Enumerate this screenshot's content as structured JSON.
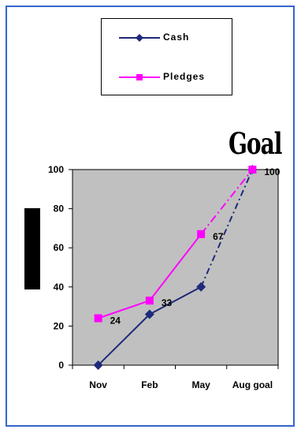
{
  "chart_data": {
    "type": "line",
    "categories": [
      "Nov",
      "Feb",
      "May",
      "Aug goal"
    ],
    "series": [
      {
        "name": "Cash",
        "values": [
          0,
          26,
          40,
          100
        ],
        "color": "#1f2a7a",
        "marker": "diamond"
      },
      {
        "name": "Pledges",
        "values": [
          24,
          33,
          67,
          100
        ],
        "color": "#ff00ff",
        "marker": "square"
      }
    ],
    "data_labels": [
      {
        "series": "Pledges",
        "category": "Nov",
        "text": "24"
      },
      {
        "series": "Pledges",
        "category": "Feb",
        "text": "33"
      },
      {
        "series": "Pledges",
        "category": "May",
        "text": "67"
      },
      {
        "series": "Pledges",
        "category": "Aug goal",
        "text": "100"
      }
    ],
    "annotation": "Goal",
    "ylim": [
      0,
      100
    ],
    "yticks": [
      0,
      20,
      40,
      60,
      80,
      100
    ],
    "plot_background": "#c0c0c0",
    "grid": false,
    "legend_position": "top",
    "projected_segment": "May to Aug goal drawn dash-dot"
  }
}
